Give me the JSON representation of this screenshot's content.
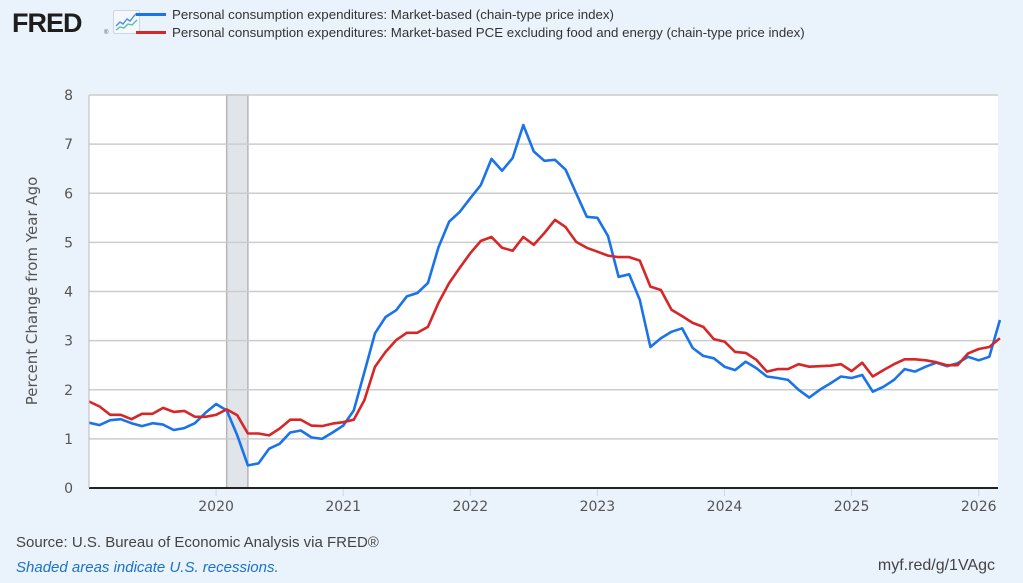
{
  "header": {
    "logo_text": "FRED",
    "logo_reg": "®",
    "logo_icon": "line-chart-icon"
  },
  "legend": [
    {
      "label": "Personal consumption expenditures: Market-based (chain-type price index)",
      "color": "#1a73e8"
    },
    {
      "label": "Personal consumption expenditures: Market-based PCE excluding food and energy (chain-type price index)",
      "color": "#d62728"
    }
  ],
  "footer": {
    "source": "Source: U.S. Bureau of Economic Analysis via FRED®",
    "note": "Shaded areas indicate U.S. recessions.",
    "link": "myf.red/g/1VAgc"
  },
  "chart_data": {
    "type": "line",
    "title": "",
    "xlabel": "",
    "ylabel": "Percent Change from Year Ago",
    "ylim": [
      0,
      8
    ],
    "yticks": [
      0,
      1,
      2,
      3,
      4,
      5,
      6,
      7,
      8
    ],
    "xlim": [
      "2019-01",
      "2026-03"
    ],
    "xticks": [
      "2020",
      "2021",
      "2022",
      "2023",
      "2024",
      "2025",
      "2026"
    ],
    "grid": true,
    "legend_position": "top",
    "recessions": [
      {
        "start": "2020-02",
        "end": "2020-04"
      }
    ],
    "start_month": "2019-01",
    "frequency": "monthly",
    "series": [
      {
        "name": "Personal consumption expenditures: Market-based (chain-type price index)",
        "color": "#1a73e8",
        "values": [
          1.33,
          1.28,
          1.38,
          1.4,
          1.32,
          1.26,
          1.32,
          1.29,
          1.18,
          1.22,
          1.32,
          1.53,
          1.71,
          1.58,
          1.07,
          0.46,
          0.5,
          0.8,
          0.9,
          1.13,
          1.17,
          1.03,
          1.0,
          1.13,
          1.27,
          1.58,
          2.36,
          3.15,
          3.48,
          3.62,
          3.9,
          3.97,
          4.17,
          4.9,
          5.42,
          5.62,
          5.9,
          6.17,
          6.7,
          6.46,
          6.72,
          7.39,
          6.85,
          6.66,
          6.68,
          6.48,
          6.0,
          5.52,
          5.5,
          5.13,
          4.3,
          4.35,
          3.83,
          2.87,
          3.05,
          3.18,
          3.25,
          2.85,
          2.69,
          2.64,
          2.47,
          2.4,
          2.57,
          2.44,
          2.27,
          2.24,
          2.2,
          2.0,
          1.84,
          2.0,
          2.13,
          2.27,
          2.24,
          2.3,
          1.96,
          2.06,
          2.2,
          2.42,
          2.37,
          2.47,
          2.55,
          2.48,
          2.54,
          2.67,
          2.6,
          2.67,
          3.42
        ]
      },
      {
        "name": "Personal consumption expenditures: Market-based PCE excluding food and energy (chain-type price index)",
        "color": "#d62728",
        "values": [
          1.76,
          1.66,
          1.49,
          1.49,
          1.4,
          1.51,
          1.51,
          1.63,
          1.55,
          1.57,
          1.45,
          1.45,
          1.49,
          1.6,
          1.48,
          1.11,
          1.11,
          1.07,
          1.21,
          1.39,
          1.39,
          1.27,
          1.26,
          1.31,
          1.34,
          1.39,
          1.79,
          2.47,
          2.77,
          3.01,
          3.16,
          3.16,
          3.28,
          3.77,
          4.17,
          4.48,
          4.78,
          5.03,
          5.11,
          4.89,
          4.83,
          5.11,
          4.95,
          5.19,
          5.46,
          5.31,
          5.01,
          4.89,
          4.81,
          4.73,
          4.7,
          4.7,
          4.63,
          4.1,
          4.03,
          3.63,
          3.5,
          3.36,
          3.28,
          3.03,
          2.98,
          2.77,
          2.75,
          2.61,
          2.37,
          2.42,
          2.42,
          2.52,
          2.47,
          2.48,
          2.49,
          2.52,
          2.38,
          2.55,
          2.27,
          2.4,
          2.52,
          2.62,
          2.62,
          2.6,
          2.56,
          2.5,
          2.5,
          2.74,
          2.83,
          2.87,
          3.05
        ]
      }
    ]
  }
}
